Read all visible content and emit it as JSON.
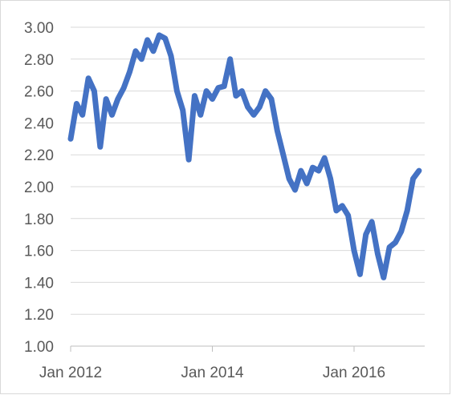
{
  "chart_data": {
    "type": "line",
    "title": "",
    "xlabel": "",
    "ylabel": "",
    "ylim": [
      1.0,
      3.0
    ],
    "yticks": [
      "1.00",
      "1.20",
      "1.40",
      "1.60",
      "1.80",
      "2.00",
      "2.20",
      "2.40",
      "2.60",
      "2.80",
      "3.00"
    ],
    "xticks": [
      "Jan 2012",
      "Jan 2014",
      "Jan 2016"
    ],
    "grid": true,
    "legend": "none",
    "series": [
      {
        "color": "#4472c4",
        "x": [
          "2012-01",
          "2012-02",
          "2012-03",
          "2012-04",
          "2012-05",
          "2012-06",
          "2012-07",
          "2012-08",
          "2012-09",
          "2012-10",
          "2012-11",
          "2012-12",
          "2013-01",
          "2013-02",
          "2013-03",
          "2013-04",
          "2013-05",
          "2013-06",
          "2013-07",
          "2013-08",
          "2013-09",
          "2013-10",
          "2013-11",
          "2013-12",
          "2014-01",
          "2014-02",
          "2014-03",
          "2014-04",
          "2014-05",
          "2014-06",
          "2014-07",
          "2014-08",
          "2014-09",
          "2014-10",
          "2014-11",
          "2014-12",
          "2015-01",
          "2015-02",
          "2015-03",
          "2015-04",
          "2015-05",
          "2015-06",
          "2015-07",
          "2015-08",
          "2015-09",
          "2015-10",
          "2015-11",
          "2015-12",
          "2016-01",
          "2016-02",
          "2016-03",
          "2016-04",
          "2016-05",
          "2016-06",
          "2016-07",
          "2016-08",
          "2016-09",
          "2016-10",
          "2016-11",
          "2016-12"
        ],
        "values": [
          2.3,
          2.52,
          2.45,
          2.68,
          2.6,
          2.25,
          2.55,
          2.45,
          2.55,
          2.62,
          2.72,
          2.85,
          2.8,
          2.92,
          2.85,
          2.95,
          2.93,
          2.82,
          2.6,
          2.48,
          2.17,
          2.57,
          2.45,
          2.6,
          2.55,
          2.62,
          2.63,
          2.8,
          2.57,
          2.6,
          2.5,
          2.45,
          2.5,
          2.6,
          2.55,
          2.35,
          2.2,
          2.05,
          1.98,
          2.1,
          2.02,
          2.12,
          2.1,
          2.18,
          2.05,
          1.85,
          1.88,
          1.82,
          1.6,
          1.45,
          1.7,
          1.78,
          1.58,
          1.43,
          1.62,
          1.65,
          1.72,
          1.85,
          2.05,
          2.1
        ]
      }
    ]
  }
}
